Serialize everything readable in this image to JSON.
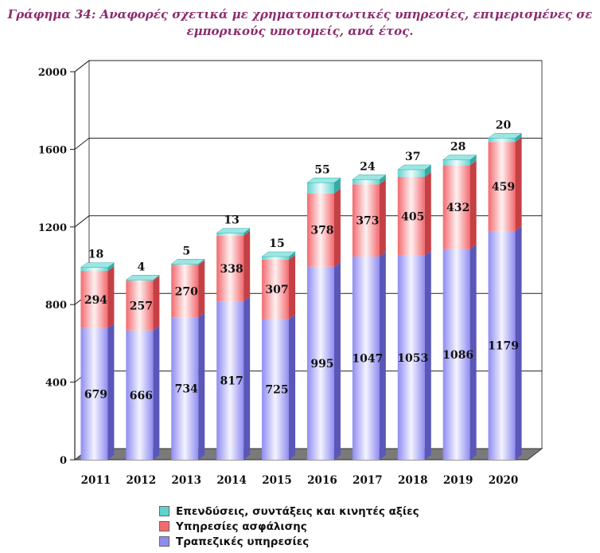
{
  "title_line1": "Γράφημα 34: Αναφορές σχετικά με χρηματοπιστωτικές υπηρεσίες, επιμερισμένες σε",
  "title_line2": "εμπορικούς υποτομείς, ανά έτος.",
  "colors": {
    "investments": "#5fd3cf",
    "insurance": "#f26a6f",
    "banking": "#8f8cf0"
  },
  "legend": [
    {
      "key": "investments",
      "label": "Επενδύσεις, συντάξεις και κινητές αξίες"
    },
    {
      "key": "insurance",
      "label": "Υπηρεσίες ασφάλισης"
    },
    {
      "key": "banking",
      "label": "Τραπεζικές υπηρεσίες"
    }
  ],
  "chart_data": {
    "type": "bar",
    "stacked": true,
    "three_d": true,
    "categories": [
      "2011",
      "2012",
      "2013",
      "2014",
      "2015",
      "2016",
      "2017",
      "2018",
      "2019",
      "2020"
    ],
    "series": [
      {
        "key": "banking",
        "name": "Τραπεζικές υπηρεσίες",
        "values": [
          679,
          666,
          734,
          817,
          725,
          995,
          1047,
          1053,
          1086,
          1179
        ]
      },
      {
        "key": "insurance",
        "name": "Υπηρεσίες ασφάλισης",
        "values": [
          294,
          257,
          270,
          338,
          307,
          378,
          373,
          405,
          432,
          459
        ]
      },
      {
        "key": "investments",
        "name": "Επενδύσεις, συντάξεις και κινητές αξίες",
        "values": [
          18,
          4,
          5,
          13,
          15,
          55,
          24,
          37,
          28,
          20
        ]
      }
    ],
    "ylim": [
      0,
      2000
    ],
    "yticks": [
      0,
      400,
      800,
      1200,
      1600,
      2000
    ],
    "grid": true,
    "legend_position": "bottom"
  }
}
